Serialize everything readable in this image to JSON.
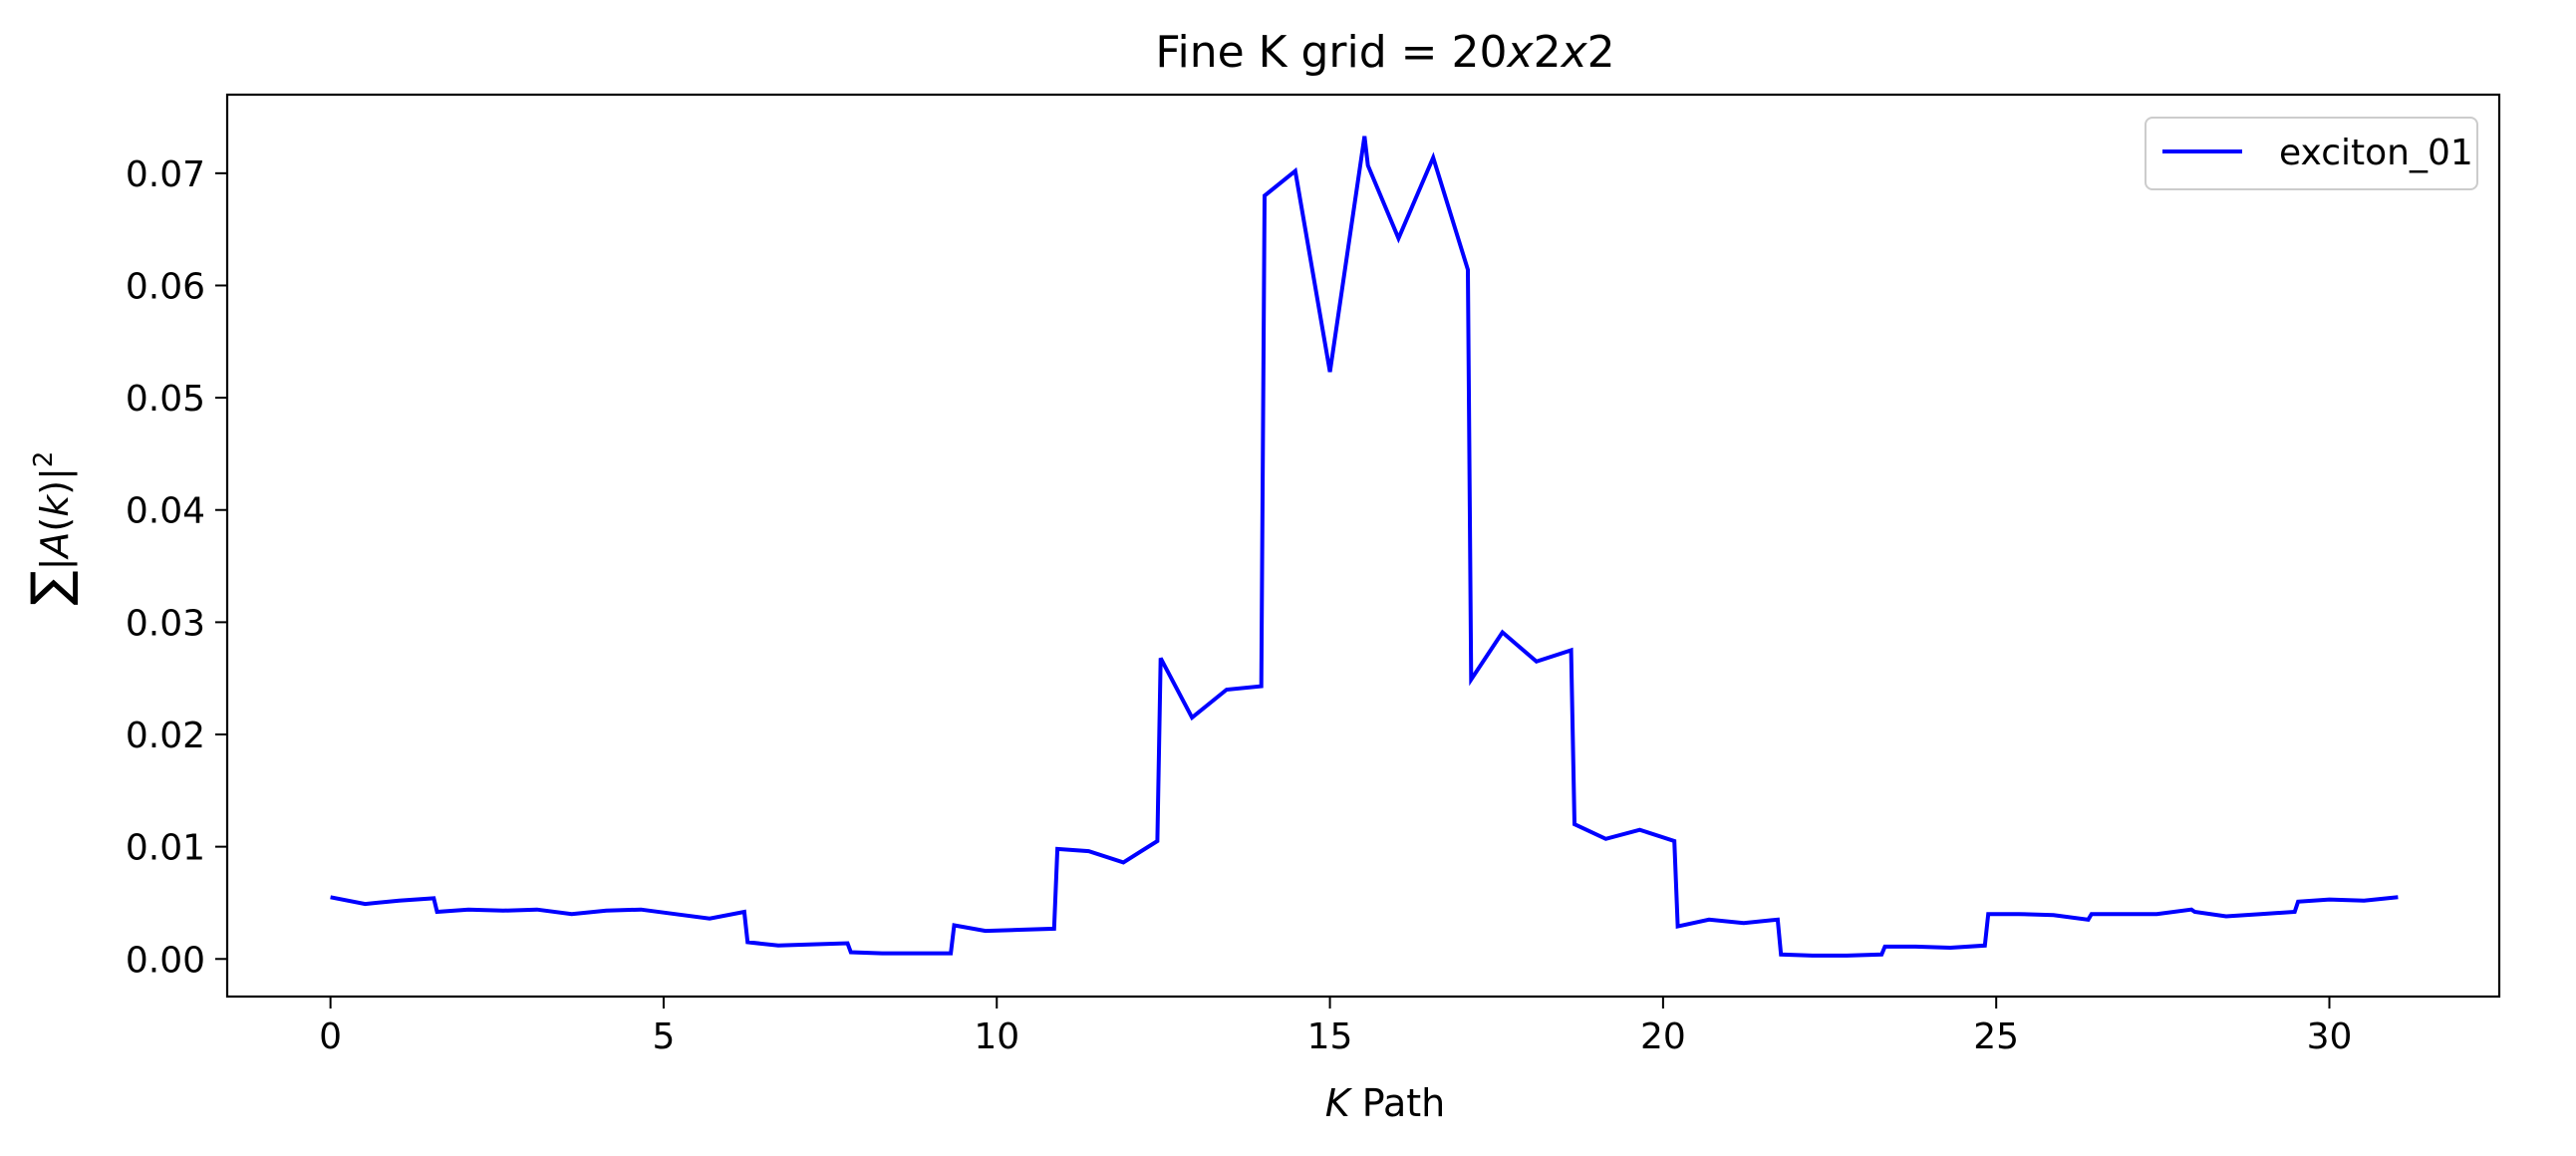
{
  "chart_data": {
    "type": "line",
    "title": "Fine K grid = 20x2x2",
    "title_parts": {
      "prefix": "Fine K grid = 20",
      "x1": "x",
      "mid": "2",
      "x2": "x",
      "suffix": "2"
    },
    "xlabel": "K Path",
    "xlabel_parts": {
      "var": "K",
      "rest": " Path"
    },
    "ylabel": "∑|A(k)|²",
    "ylabel_parts": {
      "sum": "∑",
      "bar1": "|",
      "A": "A",
      "lp": "(",
      "k": "k",
      "rp": ")",
      "bar2": "|",
      "sup": "2"
    },
    "xlim": [
      -1.55,
      32.55
    ],
    "ylim": [
      -0.00335,
      0.077
    ],
    "x_ticks": [
      0,
      5,
      10,
      15,
      20,
      25,
      30
    ],
    "y_ticks": [
      0.0,
      0.01,
      0.02,
      0.03,
      0.04,
      0.05,
      0.06,
      0.07
    ],
    "x_tick_labels": [
      "0",
      "5",
      "10",
      "15",
      "20",
      "25",
      "30"
    ],
    "y_tick_labels": [
      "0.00",
      "0.01",
      "0.02",
      "0.03",
      "0.04",
      "0.05",
      "0.06",
      "0.07"
    ],
    "grid": false,
    "legend_position": "top-right",
    "series": [
      {
        "name": "exciton_01",
        "color": "#0000ff",
        "x": [
          0,
          0.52,
          1.03,
          1.55,
          1.6,
          2.07,
          2.59,
          3.1,
          3.62,
          4.14,
          4.66,
          5.17,
          5.69,
          6.21,
          6.26,
          6.72,
          7.24,
          7.76,
          7.81,
          8.28,
          8.79,
          9.31,
          9.36,
          9.83,
          10.34,
          10.86,
          10.91,
          11.38,
          11.9,
          12.41,
          12.46,
          12.93,
          13.45,
          13.97,
          14.02,
          14.48,
          15.0,
          15.52,
          15.57,
          16.03,
          16.55,
          17.07,
          17.12,
          17.59,
          18.1,
          18.62,
          18.67,
          19.14,
          19.65,
          20.17,
          20.22,
          20.69,
          21.21,
          21.72,
          21.77,
          22.24,
          22.76,
          23.28,
          23.33,
          23.79,
          24.31,
          24.83,
          24.88,
          25.34,
          25.86,
          26.38,
          26.43,
          26.9,
          27.41,
          27.93,
          27.98,
          28.45,
          28.97,
          29.48,
          29.53,
          30.0,
          30.52,
          31.03
        ],
        "y": [
          0.0055,
          0.0049,
          0.0052,
          0.0054,
          0.0042,
          0.0044,
          0.0043,
          0.0044,
          0.004,
          0.0043,
          0.0044,
          0.004,
          0.0036,
          0.0042,
          0.0015,
          0.0012,
          0.0013,
          0.0014,
          0.0006,
          0.0005,
          0.0005,
          0.0005,
          0.003,
          0.0025,
          0.0026,
          0.0027,
          0.0098,
          0.0096,
          0.0086,
          0.0105,
          0.0268,
          0.0215,
          0.024,
          0.0243,
          0.068,
          0.0702,
          0.0523,
          0.0733,
          0.0707,
          0.0642,
          0.0714,
          0.0614,
          0.0249,
          0.0291,
          0.0265,
          0.0275,
          0.012,
          0.0107,
          0.0115,
          0.0105,
          0.0029,
          0.0035,
          0.0032,
          0.0035,
          0.0004,
          0.0003,
          0.0003,
          0.0004,
          0.0011,
          0.0011,
          0.001,
          0.0012,
          0.004,
          0.004,
          0.0039,
          0.0035,
          0.004,
          0.004,
          0.004,
          0.0044,
          0.0042,
          0.0038,
          0.004,
          0.0042,
          0.0051,
          0.0053,
          0.0052,
          0.0055
        ]
      }
    ]
  }
}
